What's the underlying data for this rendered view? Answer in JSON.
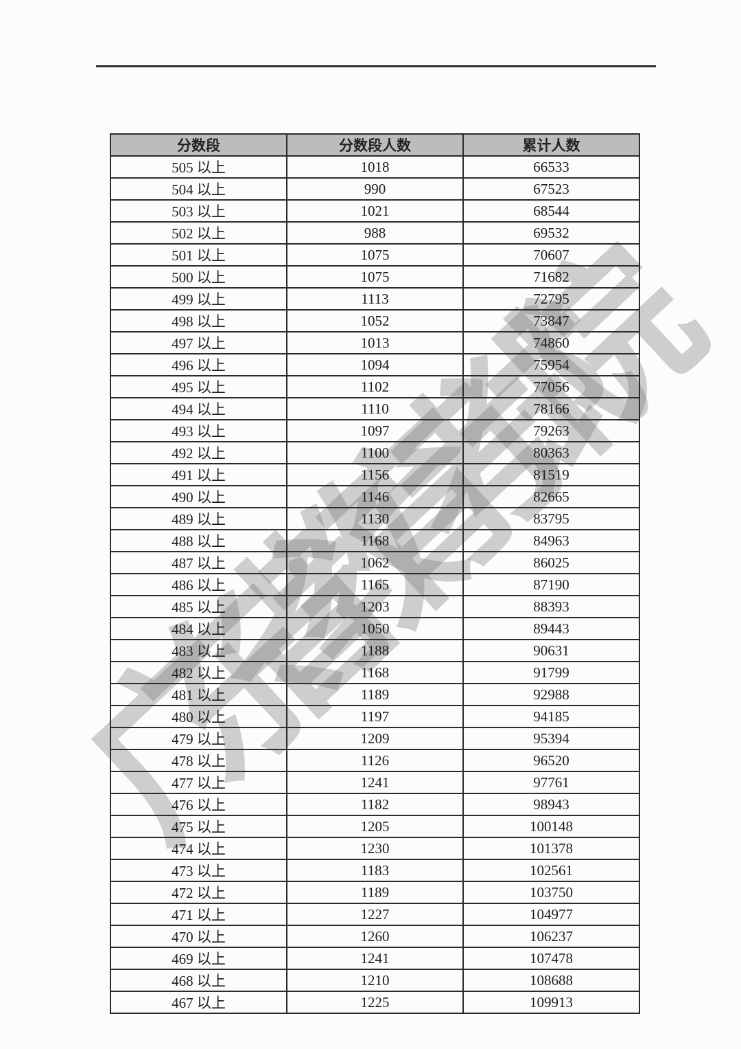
{
  "page": {
    "watermark": "广东省教育考试院"
  },
  "colors": {
    "header_background": "#bcbcbc",
    "table_border": "#2b2b2b",
    "watermark_gray": "#c6c6c6",
    "rule_color": "#2e2e2e"
  },
  "table": {
    "headers": [
      "分数段",
      "分数段人数",
      "累计人数"
    ],
    "rows": [
      [
        "505 以上",
        "1018",
        "66533"
      ],
      [
        "504 以上",
        "990",
        "67523"
      ],
      [
        "503 以上",
        "1021",
        "68544"
      ],
      [
        "502 以上",
        "988",
        "69532"
      ],
      [
        "501 以上",
        "1075",
        "70607"
      ],
      [
        "500 以上",
        "1075",
        "71682"
      ],
      [
        "499 以上",
        "1113",
        "72795"
      ],
      [
        "498 以上",
        "1052",
        "73847"
      ],
      [
        "497 以上",
        "1013",
        "74860"
      ],
      [
        "496 以上",
        "1094",
        "75954"
      ],
      [
        "495 以上",
        "1102",
        "77056"
      ],
      [
        "494 以上",
        "1110",
        "78166"
      ],
      [
        "493 以上",
        "1097",
        "79263"
      ],
      [
        "492 以上",
        "1100",
        "80363"
      ],
      [
        "491 以上",
        "1156",
        "81519"
      ],
      [
        "490 以上",
        "1146",
        "82665"
      ],
      [
        "489 以上",
        "1130",
        "83795"
      ],
      [
        "488 以上",
        "1168",
        "84963"
      ],
      [
        "487 以上",
        "1062",
        "86025"
      ],
      [
        "486 以上",
        "1165",
        "87190"
      ],
      [
        "485 以上",
        "1203",
        "88393"
      ],
      [
        "484 以上",
        "1050",
        "89443"
      ],
      [
        "483 以上",
        "1188",
        "90631"
      ],
      [
        "482 以上",
        "1168",
        "91799"
      ],
      [
        "481 以上",
        "1189",
        "92988"
      ],
      [
        "480 以上",
        "1197",
        "94185"
      ],
      [
        "479 以上",
        "1209",
        "95394"
      ],
      [
        "478 以上",
        "1126",
        "96520"
      ],
      [
        "477 以上",
        "1241",
        "97761"
      ],
      [
        "476 以上",
        "1182",
        "98943"
      ],
      [
        "475 以上",
        "1205",
        "100148"
      ],
      [
        "474 以上",
        "1230",
        "101378"
      ],
      [
        "473 以上",
        "1183",
        "102561"
      ],
      [
        "472 以上",
        "1189",
        "103750"
      ],
      [
        "471 以上",
        "1227",
        "104977"
      ],
      [
        "470 以上",
        "1260",
        "106237"
      ],
      [
        "469 以上",
        "1241",
        "107478"
      ],
      [
        "468 以上",
        "1210",
        "108688"
      ],
      [
        "467 以上",
        "1225",
        "109913"
      ]
    ]
  }
}
